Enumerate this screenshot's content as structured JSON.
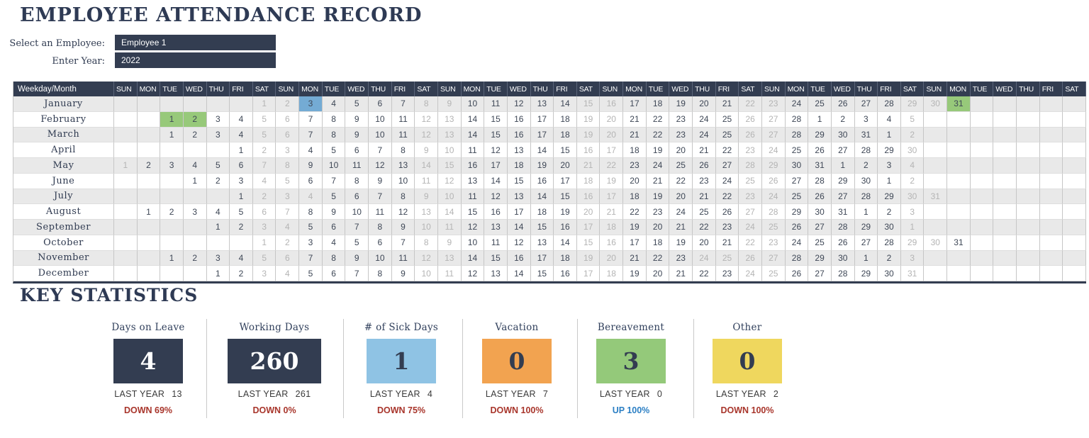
{
  "page": {
    "title": "EMPLOYEE ATTENDANCE RECORD",
    "stats_heading": "KEY STATISTICS"
  },
  "controls": {
    "employee_label": "Select an Employee:",
    "employee_value": "Employee 1",
    "year_label": "Enter Year:",
    "year_value": "2022"
  },
  "calendar": {
    "corner_label": "Weekday/Month",
    "weekday_labels": [
      "SUN",
      "MON",
      "TUE",
      "WED",
      "THU",
      "FRI",
      "SAT",
      "SUN",
      "MON",
      "TUE",
      "WED",
      "THU",
      "FRI",
      "SAT",
      "SUN",
      "MON",
      "TUE",
      "WED",
      "THU",
      "FRI",
      "SAT",
      "SUN",
      "MON",
      "TUE",
      "WED",
      "THU",
      "FRI",
      "SAT",
      "SUN",
      "MON",
      "TUE",
      "WED",
      "THU",
      "FRI",
      "SAT",
      "SUN",
      "MON",
      "TUE",
      "WED",
      "THU",
      "FRI",
      "SAT"
    ],
    "months": [
      {
        "name": "January",
        "first_col": 7,
        "num_days": 31,
        "trail_days": 0
      },
      {
        "name": "February",
        "first_col": 3,
        "num_days": 28,
        "trail_days": 5
      },
      {
        "name": "March",
        "first_col": 3,
        "num_days": 31,
        "trail_days": 2
      },
      {
        "name": "April",
        "first_col": 6,
        "num_days": 30,
        "trail_days": 0
      },
      {
        "name": "May",
        "first_col": 1,
        "num_days": 31,
        "trail_days": 4
      },
      {
        "name": "June",
        "first_col": 4,
        "num_days": 30,
        "trail_days": 2
      },
      {
        "name": "July",
        "first_col": 6,
        "num_days": 31,
        "trail_days": 0
      },
      {
        "name": "August",
        "first_col": 2,
        "num_days": 31,
        "trail_days": 3
      },
      {
        "name": "September",
        "first_col": 5,
        "num_days": 30,
        "trail_days": 1
      },
      {
        "name": "October",
        "first_col": 7,
        "num_days": 31,
        "trail_days": 0
      },
      {
        "name": "November",
        "first_col": 3,
        "num_days": 30,
        "trail_days": 3
      },
      {
        "name": "December",
        "first_col": 5,
        "num_days": 31,
        "trail_days": 0
      }
    ],
    "gray_holidays": [
      {
        "month": "July",
        "day": 4
      },
      {
        "month": "November",
        "day": 24
      },
      {
        "month": "November",
        "day": 25
      }
    ],
    "highlights": {
      "sick_blue": [
        {
          "month": "January",
          "day": 3
        }
      ],
      "leave_green": [
        {
          "month": "January",
          "day": 31
        },
        {
          "month": "February",
          "day": 1
        },
        {
          "month": "February",
          "day": 2
        }
      ]
    }
  },
  "stats": {
    "last_year_label": "LAST YEAR",
    "cards": [
      {
        "label": "Days on Leave",
        "value": "4",
        "box_color": "#333d51",
        "value_color": "#ffffff",
        "last_year": "13",
        "change": "DOWN 69%",
        "change_color": "#a8352b"
      },
      {
        "label": "Working Days",
        "value": "260",
        "box_color": "#333d51",
        "value_color": "#ffffff",
        "last_year": "261",
        "change": "DOWN 0%",
        "change_color": "#a8352b"
      },
      {
        "label": "# of Sick Days",
        "value": "1",
        "box_color": "#8fc3e4",
        "value_color": "#333d51",
        "last_year": "4",
        "change": "DOWN 75%",
        "change_color": "#a8352b"
      },
      {
        "label": "Vacation",
        "value": "0",
        "box_color": "#f2a350",
        "value_color": "#333d51",
        "last_year": "7",
        "change": "DOWN 100%",
        "change_color": "#a8352b"
      },
      {
        "label": "Bereavement",
        "value": "3",
        "box_color": "#94c97a",
        "value_color": "#333d51",
        "last_year": "0",
        "change": "UP 100%",
        "change_color": "#2b7fc4"
      },
      {
        "label": "Other",
        "value": "0",
        "box_color": "#efd75e",
        "value_color": "#333d51",
        "last_year": "2",
        "change": "DOWN 100%",
        "change_color": "#a8352b"
      }
    ]
  },
  "colors": {
    "navy": "#333d51",
    "row_stripe": "#e9e9e9",
    "weekend_text": "#b4b4b4",
    "day_text": "#3e4756",
    "sick_cell": "#74abd4",
    "leave_cell": "#97c97a",
    "down_red": "#a8352b",
    "up_blue": "#2b7fc4"
  }
}
